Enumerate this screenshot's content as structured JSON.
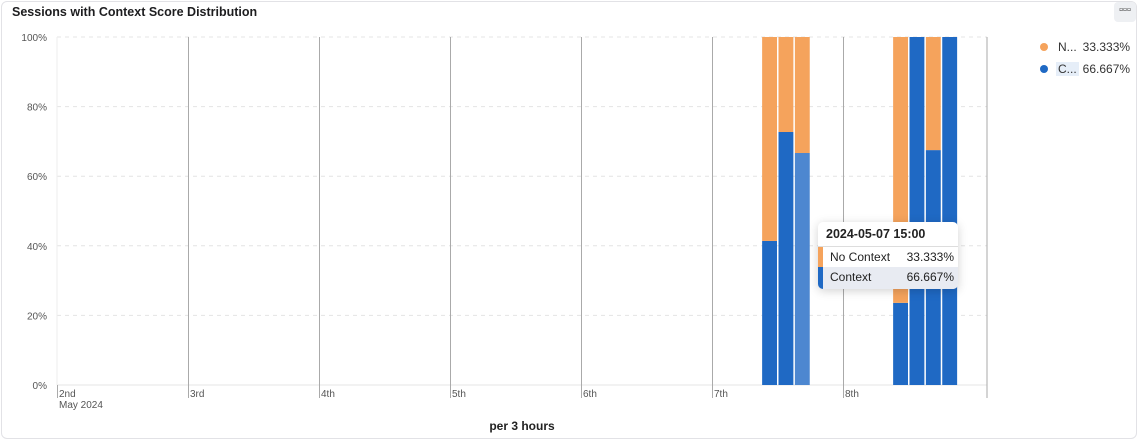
{
  "title": "Sessions with Context Score Distribution",
  "menu_label": "▫▫▫",
  "legend": [
    {
      "label": "N...",
      "value": "33.333%",
      "color": "#f5a35c"
    },
    {
      "label": "C...",
      "value": "66.667%",
      "color": "#1f69c4"
    }
  ],
  "tooltip": {
    "title": "2024-05-07 15:00",
    "rows": [
      {
        "label": "No Context",
        "value": "33.333%",
        "color": "#f5a35c"
      },
      {
        "label": "Context",
        "value": "66.667%",
        "color": "#1f69c4"
      }
    ]
  },
  "chart_data": {
    "type": "bar",
    "stacked": true,
    "title": "Sessions with Context Score Distribution",
    "xlabel": "per 3 hours",
    "ylabel": "",
    "ylim": [
      0,
      100
    ],
    "y_ticks": [
      "0%",
      "20%",
      "40%",
      "60%",
      "80%",
      "100%"
    ],
    "x_ticks": [
      "2nd",
      "3rd",
      "4th",
      "5th",
      "6th",
      "7th",
      "8th"
    ],
    "x_sublabel": "May 2024",
    "grid": true,
    "legend_position": "right",
    "x": [
      "2024-05-07 09:00",
      "2024-05-07 12:00",
      "2024-05-07 15:00",
      "2024-05-08 09:00",
      "2024-05-08 12:00",
      "2024-05-08 15:00",
      "2024-05-08 18:00"
    ],
    "series": [
      {
        "name": "Context",
        "color": "#1f69c4",
        "values": [
          41.4,
          72.7,
          66.667,
          23.6,
          100,
          67.5,
          100
        ]
      },
      {
        "name": "No Context",
        "color": "#f5a35c",
        "values": [
          58.6,
          27.3,
          33.333,
          76.4,
          0,
          32.5,
          0
        ]
      }
    ]
  }
}
